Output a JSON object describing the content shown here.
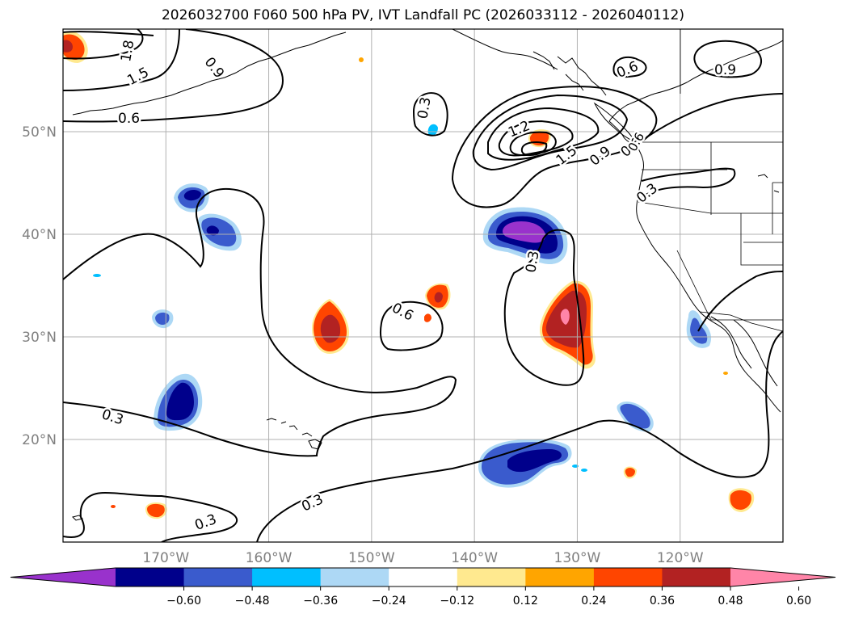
{
  "title": "2026032700 F060 500 hPa PV, IVT Landfall PC (2026033112 - 2026040112)",
  "map": {
    "projection": "cylindrical",
    "lon_range": [
      -180,
      -110
    ],
    "lat_range": [
      10,
      60
    ],
    "lat_ticks": [
      {
        "value": 50,
        "label": "50°N"
      },
      {
        "value": 40,
        "label": "40°N"
      },
      {
        "value": 30,
        "label": "30°N"
      },
      {
        "value": 20,
        "label": "20°N"
      }
    ],
    "lon_ticks": [
      {
        "value": -170,
        "label": "170°W"
      },
      {
        "value": -160,
        "label": "160°W"
      },
      {
        "value": -150,
        "label": "150°W"
      },
      {
        "value": -140,
        "label": "140°W"
      },
      {
        "value": -130,
        "label": "130°W"
      },
      {
        "value": -120,
        "label": "120°W"
      }
    ],
    "tick_label_color": "#808080",
    "grid": true,
    "grid_color": "#b0b0b0",
    "contour_labels": [
      "1.8",
      "1.5",
      "0.9",
      "0.6",
      "0.3",
      "1.2",
      "1.5",
      "0.9",
      "0.6",
      "0.3",
      "0.6",
      "0.3",
      "0.6",
      "0.3",
      "0.3",
      "0.3",
      "0.6",
      "0.9"
    ]
  },
  "colorbar": {
    "extend": "both",
    "ticks": [
      "−0.60",
      "−0.48",
      "−0.36",
      "−0.24",
      "−0.12",
      "0.12",
      "0.24",
      "0.36",
      "0.48",
      "0.60"
    ],
    "colors": [
      "#9932cc",
      "#00008b",
      "#3a5bcd",
      "#00bfff",
      "#add8f5",
      "#ffffff",
      "#ffe98f",
      "#ffa500",
      "#ff4500",
      "#b22222",
      "#ff85a8"
    ]
  }
}
